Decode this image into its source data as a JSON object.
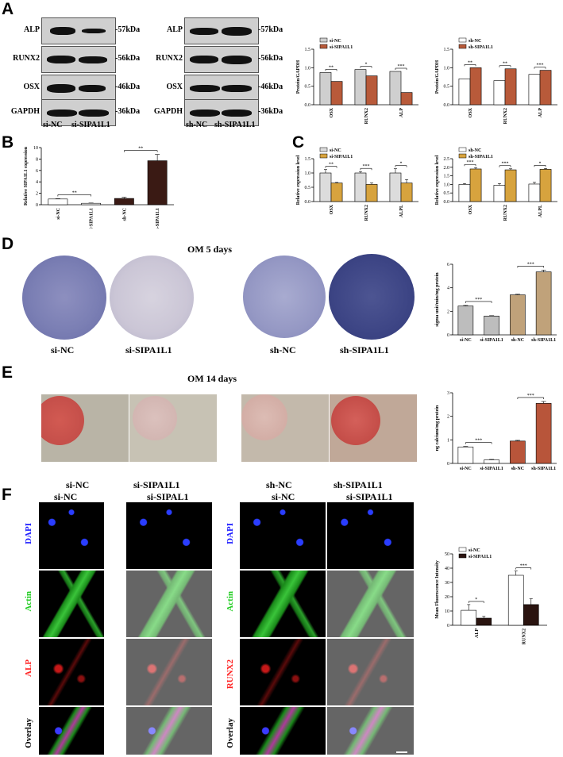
{
  "panels": {
    "A": "A",
    "B": "B",
    "C": "C",
    "D": "D",
    "E": "E",
    "F": "F"
  },
  "westernA1": {
    "rows": [
      {
        "label": "ALP",
        "kda": "-57kDa"
      },
      {
        "label": "RUNX2",
        "kda": "-56kDa"
      },
      {
        "label": "OSX",
        "kda": "-46kDa"
      },
      {
        "label": "GAPDH",
        "kda": "-36kDa"
      }
    ],
    "lanes": [
      "si-NC",
      "si-SIPA1L1"
    ]
  },
  "westernA2": {
    "rows": [
      {
        "label": "ALP",
        "kda": "-57kDa"
      },
      {
        "label": "RUNX2",
        "kda": "-56kDa"
      },
      {
        "label": "OSX",
        "kda": "-46kDa"
      },
      {
        "label": "GAPDH",
        "kda": "-36kDa"
      }
    ],
    "lanes": [
      "sh-NC",
      "sh-SIPA1L1"
    ]
  },
  "D": {
    "title": "OM 5 days",
    "labels": [
      "si-NC",
      "si-SIPA1L1",
      "sh-NC",
      "sh-SIPA1L1"
    ]
  },
  "E": {
    "title": "OM 14 days",
    "labels": [
      "si-NC",
      "si-SIPA1L1",
      "sh-NC",
      "sh-SIPA1L1"
    ]
  },
  "F": {
    "headers": [
      "si-NC",
      "si-SIPAL1",
      "si-NC",
      "si-SIPA1L1"
    ],
    "rows_left": [
      "DAPI",
      "Actin",
      "ALP",
      "Overlay"
    ],
    "rows_right": [
      "DAPI",
      "Actin",
      "RUNX2",
      "Overlay"
    ],
    "colors": {
      "DAPI": "#1a1aff",
      "Actin": "#22cc22",
      "ALP": "#ff2020",
      "RUNX2": "#ff2020",
      "Overlay": "#000000"
    }
  },
  "chart_data": [
    {
      "id": "A-left",
      "type": "bar",
      "ylabel": "Protein/GAPDH",
      "ylim": [
        0,
        1.5
      ],
      "yticks": [
        "0.0",
        "0.5",
        "1.0",
        "1.5"
      ],
      "categories": [
        "OSX",
        "RUNX2",
        "ALP"
      ],
      "series": [
        {
          "name": "si-NC",
          "values": [
            0.87,
            0.95,
            0.9
          ],
          "color": "#cfcfcf"
        },
        {
          "name": "si-SIPA1L1",
          "values": [
            0.63,
            0.78,
            0.33
          ],
          "color": "#b85a3a"
        }
      ],
      "sig": [
        "**",
        "*",
        "***"
      ]
    },
    {
      "id": "A-right",
      "type": "bar",
      "ylabel": "Protein/GAPDH",
      "ylim": [
        0,
        1.5
      ],
      "yticks": [
        "0.0",
        "0.5",
        "1.0",
        "1.5"
      ],
      "categories": [
        "OSX",
        "RUNX2",
        "ALP"
      ],
      "series": [
        {
          "name": "sh-NC",
          "values": [
            0.7,
            0.65,
            0.82
          ],
          "color": "#ffffff"
        },
        {
          "name": "sh-SIPA1L1",
          "values": [
            1.0,
            0.97,
            0.93
          ],
          "color": "#b85a3a"
        }
      ],
      "sig": [
        "**",
        "**",
        "***"
      ]
    },
    {
      "id": "B",
      "type": "bar",
      "ylabel": "Relative SIPA1L1 expression",
      "ylim": [
        0,
        10
      ],
      "yticks": [
        "0",
        "2",
        "4",
        "6",
        "8",
        "10"
      ],
      "categories": [
        "si-NC",
        "si-SIPA1L1",
        "sh-NC",
        "sh-SIPA1L1"
      ],
      "values": [
        1.0,
        0.25,
        1.1,
        7.7
      ],
      "errors": [
        0.05,
        0.05,
        0.2,
        1.1
      ],
      "colors": [
        "#ffffff",
        "#ffffff",
        "#3a1a14",
        "#3a1a14"
      ],
      "sig": [
        {
          "from": 0,
          "to": 1,
          "label": "**"
        },
        {
          "from": 2,
          "to": 3,
          "label": "**"
        }
      ]
    },
    {
      "id": "C-left",
      "type": "bar",
      "ylabel": "Relative expression level",
      "ylim": [
        0,
        1.5
      ],
      "yticks": [
        "0.0",
        "0.5",
        "1.0",
        "1.5"
      ],
      "categories": [
        "OSX",
        "RUNX2",
        "ALPL"
      ],
      "series": [
        {
          "name": "si-NC",
          "values": [
            1.0,
            1.0,
            1.0
          ],
          "errors": [
            0.12,
            0.05,
            0.15
          ],
          "color": "#dcdcdc"
        },
        {
          "name": "si-SIPA1L1",
          "values": [
            0.65,
            0.6,
            0.65
          ],
          "errors": [
            0.02,
            0.05,
            0.12
          ],
          "color": "#d7a33e"
        }
      ],
      "sig": [
        "**",
        "***",
        "*"
      ]
    },
    {
      "id": "C-right",
      "type": "bar",
      "ylabel": "Relative expression level",
      "ylim": [
        0,
        2.5
      ],
      "yticks": [
        "0.0",
        "0.5",
        "1.0",
        "1.5",
        "2.0",
        "2.5"
      ],
      "categories": [
        "OSX",
        "RUNX2",
        "ALPL"
      ],
      "series": [
        {
          "name": "sh-NC",
          "values": [
            1.0,
            0.95,
            1.02
          ],
          "errors": [
            0.05,
            0.1,
            0.1
          ],
          "color": "#ffffff"
        },
        {
          "name": "sh-SIPA1L1",
          "values": [
            1.9,
            1.85,
            1.88
          ],
          "errors": [
            0.08,
            0.06,
            0.05
          ],
          "color": "#d7a33e"
        }
      ],
      "sig": [
        "***",
        "***",
        "*"
      ]
    },
    {
      "id": "D",
      "type": "bar",
      "ylabel": "sigma unit/min/mg protein",
      "ylim": [
        0,
        6
      ],
      "yticks": [
        "0",
        "2",
        "4",
        "6"
      ],
      "categories": [
        "si-NC",
        "si-SIPA1L1",
        "sh-NC",
        "sh-SIPA1L1"
      ],
      "values": [
        2.45,
        1.6,
        3.4,
        5.35
      ],
      "errors": [
        0.05,
        0.03,
        0.05,
        0.15
      ],
      "colors": [
        "#bdbdbd",
        "#bdbdbd",
        "#c0a27a",
        "#c0a27a"
      ],
      "sig": [
        {
          "from": 0,
          "to": 1,
          "label": "***"
        },
        {
          "from": 2,
          "to": 3,
          "label": "***"
        }
      ]
    },
    {
      "id": "E",
      "type": "bar",
      "ylabel": "ng calcium/mg protein",
      "ylim": [
        0,
        3
      ],
      "yticks": [
        "0",
        "1",
        "2",
        "3"
      ],
      "categories": [
        "si-NC",
        "si-SIPA1L1",
        "sh-NC",
        "sh-SIPA1L1"
      ],
      "values": [
        0.7,
        0.15,
        0.95,
        2.55
      ],
      "errors": [
        0.02,
        0.02,
        0.03,
        0.08
      ],
      "colors": [
        "#ffffff",
        "#ffffff",
        "#b8553a",
        "#b8553a"
      ],
      "sig": [
        {
          "from": 0,
          "to": 1,
          "label": "***"
        },
        {
          "from": 2,
          "to": 3,
          "label": "***"
        }
      ]
    },
    {
      "id": "F",
      "type": "bar",
      "ylabel": "Mean Fluorescence Intensity",
      "ylim": [
        0,
        50
      ],
      "yticks": [
        "0",
        "10",
        "20",
        "30",
        "40",
        "50"
      ],
      "categories": [
        "ALP",
        "RUNX2"
      ],
      "series": [
        {
          "name": "si-NC",
          "values": [
            10.5,
            35
          ],
          "errors": [
            4,
            3
          ],
          "color": "#ffffff"
        },
        {
          "name": "si-SIPA1L1",
          "values": [
            5,
            14.5
          ],
          "errors": [
            1.2,
            4
          ],
          "color": "#2a1410"
        }
      ],
      "sig": [
        "*",
        "***"
      ]
    }
  ]
}
